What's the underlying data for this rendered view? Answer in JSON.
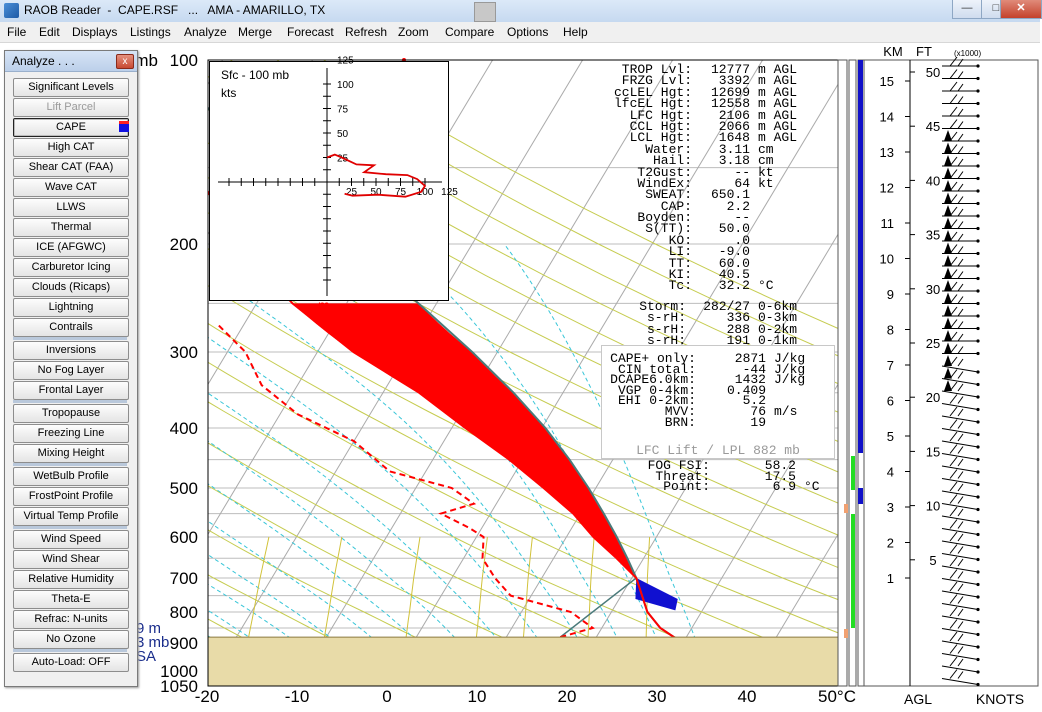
{
  "window": {
    "title": "RAOB Reader  -  CAPE.RSF   ...   AMA - AMARILLO, TX",
    "minimize": "—",
    "maximize": "□",
    "close": "✕"
  },
  "menu": [
    "File",
    "Edit",
    "Displays",
    "Listings",
    "Analyze",
    "Merge",
    "Forecast",
    "Refresh",
    "Zoom",
    "Compare",
    "Options",
    "Help"
  ],
  "analyze_panel": {
    "title": "Analyze . . .",
    "close": "x",
    "groups": [
      [
        {
          "label": "Significant Levels"
        },
        {
          "label": "Lift Parcel",
          "state": "disabled"
        },
        {
          "label": "CAPE",
          "state": "active",
          "swatch": "#1010e0"
        },
        {
          "label": "High CAT"
        },
        {
          "label": "Shear CAT  (FAA)"
        },
        {
          "label": "Wave CAT"
        },
        {
          "label": "LLWS"
        },
        {
          "label": "Thermal"
        },
        {
          "label": "ICE (AFGWC)"
        },
        {
          "label": "Carburetor Icing"
        },
        {
          "label": "Clouds (Ricaps)"
        },
        {
          "label": "Lightning"
        },
        {
          "label": "Contrails"
        }
      ],
      [
        {
          "label": "Inversions"
        },
        {
          "label": "No Fog Layer"
        },
        {
          "label": "Frontal Layer"
        }
      ],
      [
        {
          "label": "Tropopause"
        },
        {
          "label": "Freezing Line"
        },
        {
          "label": "Mixing Height"
        }
      ],
      [
        {
          "label": "WetBulb Profile"
        },
        {
          "label": "FrostPoint Profile"
        },
        {
          "label": "Virtual Temp Profile"
        }
      ],
      [
        {
          "label": "Wind Speed"
        },
        {
          "label": "Wind Shear"
        },
        {
          "label": "Relative Humidity"
        },
        {
          "label": "Theta-E"
        },
        {
          "label": "Refrac: N-units"
        },
        {
          "label": "No Ozone"
        }
      ],
      [
        {
          "label": "Auto-Load: OFF"
        }
      ]
    ]
  },
  "skewt": {
    "pressure_labels": [
      "100",
      "200",
      "300",
      "400",
      "500",
      "600",
      "700",
      "800",
      "900",
      "1000",
      "1050"
    ],
    "pressure_unit": "mb",
    "temp_labels": [
      "-20",
      "-10",
      "0",
      "10",
      "20",
      "30",
      "40",
      "50°C"
    ],
    "temp_values": [
      -20,
      -10,
      0,
      10,
      20,
      30,
      40,
      50
    ],
    "temp_range": [
      -20,
      50
    ],
    "plevels": [
      100,
      200,
      300,
      400,
      500,
      600,
      700,
      800,
      900,
      1000,
      1050
    ],
    "parcel_marker": "m",
    "colors": {
      "cape": "#ff0000",
      "cin": "#1010d0",
      "temp": "#ff0000",
      "dewpoint": "#ff0000",
      "parcel": "#4a7a7a",
      "ground": "#e8dba8",
      "isotherm": "#aaaaaa",
      "dry_adiabat": "#c6cc50",
      "moist_adiabat": "#39c6d8",
      "mixing_ratio": "#d1c23a"
    },
    "temperature_profile": [
      [
        1000,
        33
      ],
      [
        900,
        30
      ],
      [
        850,
        26.5
      ],
      [
        800,
        24
      ],
      [
        700,
        20.5
      ],
      [
        650,
        17
      ],
      [
        600,
        13
      ],
      [
        550,
        9.2
      ],
      [
        500,
        4.2
      ],
      [
        450,
        -1.5
      ],
      [
        400,
        -8.5
      ],
      [
        350,
        -16
      ],
      [
        300,
        -26
      ],
      [
        250,
        -36
      ],
      [
        200,
        -46
      ],
      [
        150,
        -56
      ],
      [
        100,
        -66
      ]
    ],
    "parcel_profile": [
      [
        1000,
        33
      ],
      [
        900,
        30
      ],
      [
        850,
        26.5
      ],
      [
        800,
        24
      ],
      [
        700,
        20.5
      ],
      [
        650,
        18.2
      ],
      [
        600,
        15.6
      ],
      [
        550,
        12.6
      ],
      [
        500,
        9.2
      ],
      [
        450,
        5.2
      ],
      [
        400,
        0.4
      ],
      [
        350,
        -5.5
      ],
      [
        300,
        -12.8
      ],
      [
        250,
        -22
      ],
      [
        200,
        -33.5
      ],
      [
        150,
        -49
      ],
      [
        100,
        -66
      ]
    ],
    "dewpoint_profile": [
      [
        880,
        16
      ],
      [
        850,
        19
      ],
      [
        800,
        15.5
      ],
      [
        750,
        7.7
      ],
      [
        700,
        4.8
      ],
      [
        650,
        2.1
      ],
      [
        600,
        0.8
      ],
      [
        580,
        -1.4
      ],
      [
        550,
        -5.5
      ],
      [
        530,
        -2.5
      ],
      [
        500,
        -6
      ],
      [
        470,
        -14
      ],
      [
        420,
        -20
      ],
      [
        380,
        -28
      ],
      [
        340,
        -34
      ],
      [
        300,
        -38
      ],
      [
        270,
        -43
      ]
    ]
  },
  "hodograph": {
    "title": "Sfc - 100 mb",
    "units": "kts",
    "ring_labels": [
      "25",
      "50",
      "75",
      "100",
      "125"
    ]
  },
  "stats": [
    {
      "label": "TROP Lvl:",
      "value": "12777",
      "unit": "m AGL"
    },
    {
      "label": "FRZG Lvl:",
      "value": "3392",
      "unit": "m AGL"
    },
    {
      "label": "ccLEL Hgt:",
      "value": "12699",
      "unit": "m AGL"
    },
    {
      "label": "lfcEL Hgt:",
      "value": "12558",
      "unit": "m AGL"
    },
    {
      "label": "LFC Hgt:",
      "value": "2106",
      "unit": "m AGL"
    },
    {
      "label": "CCL Hgt:",
      "value": "2066",
      "unit": "m AGL"
    },
    {
      "label": "LCL Hgt:",
      "value": "1648",
      "unit": "m AGL"
    },
    {
      "label": "Water:",
      "value": "3.11",
      "unit": "cm"
    },
    {
      "label": "Hail:",
      "value": "3.18",
      "unit": "cm"
    },
    {
      "label": "T2Gust:",
      "value": "--",
      "unit": "kt"
    },
    {
      "label": "WindEx:",
      "value": "64",
      "unit": "kt"
    },
    {
      "label": "SWEAT:",
      "value": "650.1",
      "unit": ""
    },
    {
      "label": "CAP:",
      "value": "2.2",
      "unit": ""
    },
    {
      "label": "Boyden:",
      "value": "--",
      "unit": ""
    },
    {
      "label": "S(TT):",
      "value": "50.0",
      "unit": ""
    },
    {
      "label": "KO:",
      "value": ".0",
      "unit": ""
    },
    {
      "label": "LI:",
      "value": "-9.0",
      "unit": ""
    },
    {
      "label": "TT:",
      "value": "60.0",
      "unit": ""
    },
    {
      "label": "KI:",
      "value": "40.5",
      "unit": ""
    },
    {
      "label": "Tc:",
      "value": "32.2",
      "unit": "°C"
    }
  ],
  "storm": [
    {
      "label": "Storm:",
      "value": "282/27",
      "range": "0-6km"
    },
    {
      "label": "s-rH:",
      "value": "336",
      "range": "0-3km"
    },
    {
      "label": "s-rH:",
      "value": "288",
      "range": "0-2km"
    },
    {
      "label": "s-rH:",
      "value": "191",
      "range": "0-1km"
    }
  ],
  "cape_box": {
    "rows": [
      {
        "label": "CAPE+ only:",
        "value": "2871",
        "unit": "J/kg"
      },
      {
        "label": "CIN total:",
        "value": "-44",
        "unit": "J/kg"
      },
      {
        "label": "DCAPE6.0km:",
        "value": "1432",
        "unit": "J/kg"
      },
      {
        "label": "VGP 0-4km:",
        "value": "0.409",
        "unit": ""
      },
      {
        "label": "EHI 0-2km:",
        "value": "5.2",
        "unit": ""
      },
      {
        "label": "MVV:",
        "value": "76",
        "unit": "m/s"
      },
      {
        "label": "BRN:",
        "value": "19",
        "unit": ""
      }
    ],
    "lift": "LFC Lift / LPL 882 mb"
  },
  "fog": [
    {
      "label": "FOG FSI:",
      "value": "58.2",
      "unit": ""
    },
    {
      "label": "Threat:",
      "value": "17.5",
      "unit": ""
    },
    {
      "label": "Point:",
      "value": "6.9",
      "unit": "°C"
    }
  ],
  "left_strip": [
    "9 m",
    "3 mb",
    "SA"
  ],
  "wind_panel": {
    "km_header": "KM",
    "ft_header": "FT",
    "ft_sub": "(x1000)",
    "km_labels": [
      "15",
      "14",
      "13",
      "12",
      "11",
      "10",
      "9",
      "8",
      "7",
      "6",
      "5",
      "4",
      "3",
      "2",
      "1"
    ],
    "ft_labels": [
      "50",
      "45",
      "40",
      "35",
      "30",
      "25",
      "20",
      "15",
      "10",
      "5"
    ],
    "agl": "AGL",
    "knots": "KNOTS"
  }
}
